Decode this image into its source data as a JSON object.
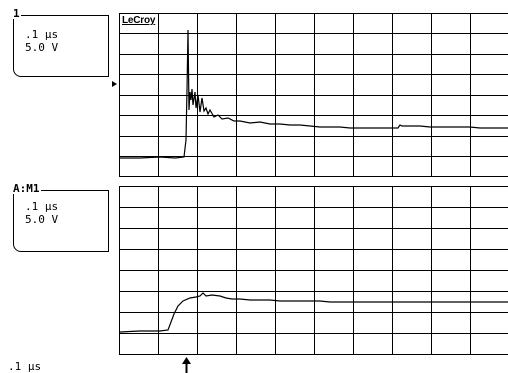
{
  "brand": "LeCroy",
  "trace1": {
    "label": "1",
    "timebase": ".1 µs",
    "volts": "5.0 V"
  },
  "trace2": {
    "label": "A:M1",
    "timebase": ".1 µs",
    "volts": "5.0 V"
  },
  "footer": {
    "timebase": ".1 µs"
  },
  "icons": {
    "level_marker": "triangle-right",
    "trigger_marker": "arrow-up"
  }
}
